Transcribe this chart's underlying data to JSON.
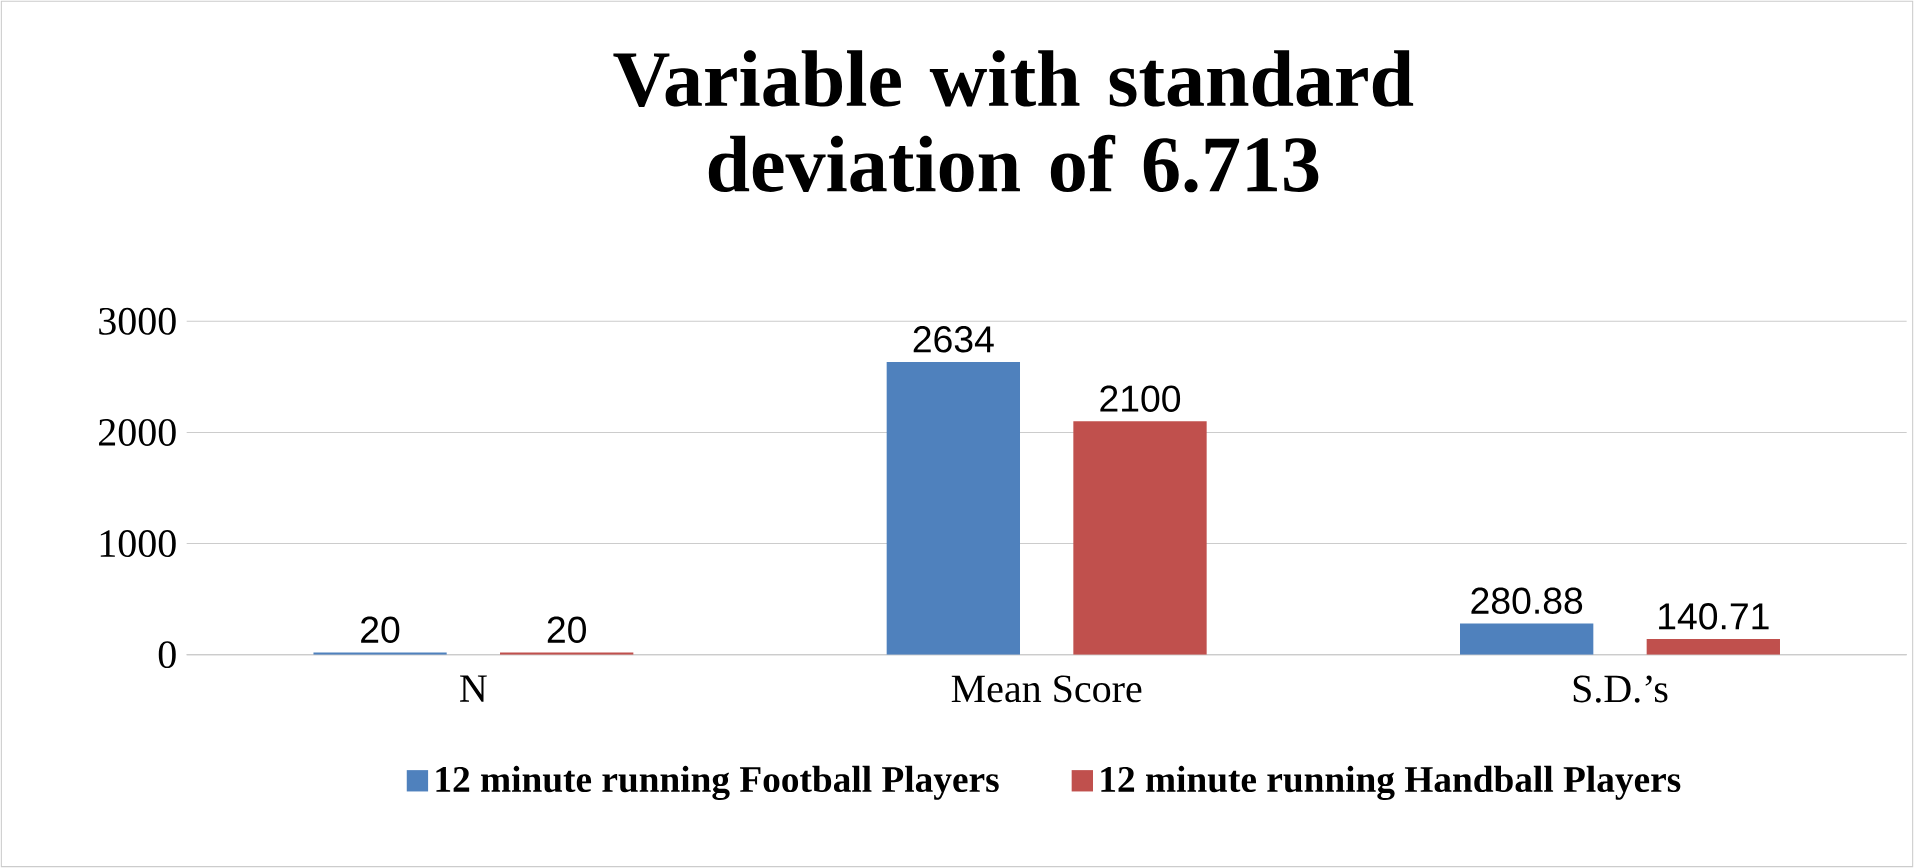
{
  "chart_data": {
    "type": "bar",
    "title": "Variable with standard deviation of 6.713",
    "categories": [
      "N",
      "Mean Score",
      "S.D.’s"
    ],
    "series": [
      {
        "name": "12 minute running Football Players",
        "color": "#4f81bd",
        "values": [
          20,
          2634,
          280.88
        ]
      },
      {
        "name": "12 minute running Handball Players",
        "color": "#c0504d",
        "values": [
          20,
          2100,
          140.71
        ]
      }
    ],
    "ylim": [
      0,
      3000
    ],
    "yticks": [
      0,
      1000,
      2000,
      3000
    ],
    "grid": "y",
    "legend": "bottom",
    "data_labels": true
  }
}
